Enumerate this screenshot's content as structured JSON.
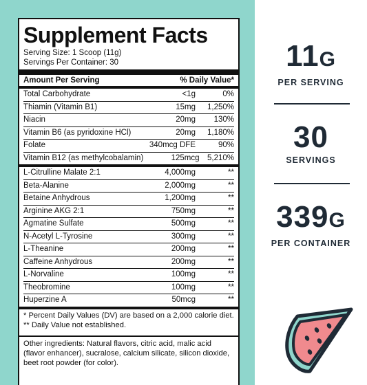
{
  "label": {
    "title": "Supplement Facts",
    "serving_size": "Serving Size: 1 Scoop (11g)",
    "servings_per_container": "Servings Per Container: 30",
    "header_left": "Amount Per Serving",
    "header_right": "% Daily Value*",
    "vitamins": [
      {
        "name": "Total Carbohydrate",
        "amount": "<1g",
        "dv": "0%"
      },
      {
        "name": "Thiamin (Vitamin B1)",
        "amount": "15mg",
        "dv": "1,250%"
      },
      {
        "name": "Niacin",
        "amount": "20mg",
        "dv": "130%"
      },
      {
        "name": "Vitamin B6 (as pyridoxine HCl)",
        "amount": "20mg",
        "dv": "1,180%"
      },
      {
        "name": "Folate",
        "amount": "340mcg DFE",
        "dv": "90%"
      },
      {
        "name": "Vitamin B12 (as methylcobalamin)",
        "amount": "125mcg",
        "dv": "5,210%"
      }
    ],
    "ingredients": [
      {
        "name": "L-Citrulline Malate 2:1",
        "amount": "4,000mg",
        "dv": "**"
      },
      {
        "name": "Beta-Alanine",
        "amount": "2,000mg",
        "dv": "**"
      },
      {
        "name": "Betaine Anhydrous",
        "amount": "1,200mg",
        "dv": "**"
      },
      {
        "name": "Arginine AKG 2:1",
        "amount": "750mg",
        "dv": "**"
      },
      {
        "name": "Agmatine Sulfate",
        "amount": "500mg",
        "dv": "**"
      },
      {
        "name": "N-Acetyl L-Tyrosine",
        "amount": "300mg",
        "dv": "**"
      },
      {
        "name": "L-Theanine",
        "amount": "200mg",
        "dv": "**"
      },
      {
        "name": "Caffeine Anhydrous",
        "amount": "200mg",
        "dv": "**"
      },
      {
        "name": "L-Norvaline",
        "amount": "100mg",
        "dv": "**"
      },
      {
        "name": "Theobromine",
        "amount": "100mg",
        "dv": "**"
      },
      {
        "name": "Huperzine A",
        "amount": "50mcg",
        "dv": "**"
      }
    ],
    "footnote_1": "* Percent Daily Values (DV) are based on a 2,000 calorie diet.",
    "footnote_2": "** Daily Value not established.",
    "other_ingredients": "Other ingredients: Natural flavors, citric acid, malic acid (flavor enhancer), sucralose, calcium silicate, silicon dioxide, beet root powder (for color)."
  },
  "stats": {
    "per_serving": {
      "number": "11",
      "unit": "G",
      "caption": "PER SERVING"
    },
    "servings": {
      "number": "30",
      "caption": "SERVINGS"
    },
    "per_container": {
      "number": "339",
      "unit": "G",
      "caption": "PER CONTAINER"
    }
  },
  "colors": {
    "background_teal": "#8fd6cc",
    "text_dark": "#1f2a35",
    "melon_flesh": "#f08a8e",
    "melon_rind": "#8fd6cc"
  },
  "icons": {
    "flavor": "watermelon-slice-icon"
  }
}
